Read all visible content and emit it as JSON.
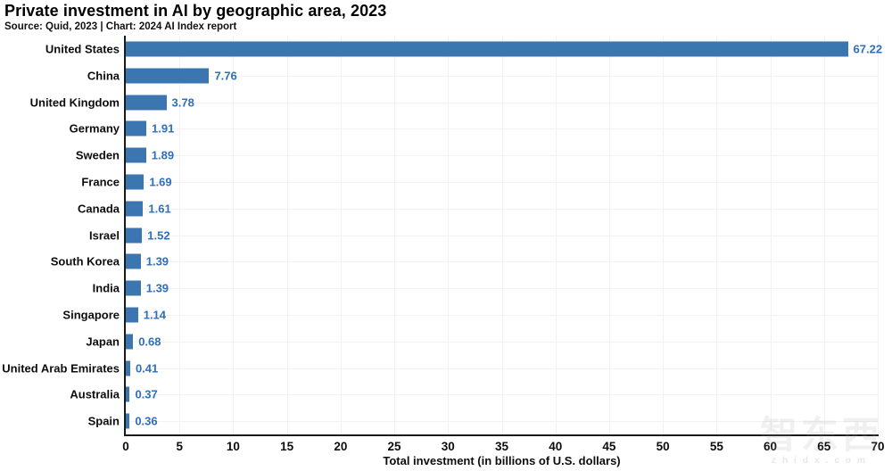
{
  "header": {
    "title": "Private investment in AI by geographic area, 2023",
    "subtitle": "Source: Quid, 2023 | Chart: 2024 AI Index report"
  },
  "chart_data": {
    "type": "bar",
    "orientation": "horizontal",
    "title": "Private investment in AI by geographic area, 2023",
    "subtitle": "Source: Quid, 2023 | Chart: 2024 AI Index report",
    "categories": [
      "United States",
      "China",
      "United Kingdom",
      "Germany",
      "Sweden",
      "France",
      "Canada",
      "Israel",
      "South Korea",
      "India",
      "Singapore",
      "Japan",
      "United Arab Emirates",
      "Australia",
      "Spain"
    ],
    "values": [
      67.22,
      7.76,
      3.78,
      1.91,
      1.89,
      1.69,
      1.61,
      1.52,
      1.39,
      1.39,
      1.14,
      0.68,
      0.41,
      0.37,
      0.36
    ],
    "xlabel": "Total investment (in billions of U.S. dollars)",
    "ylabel": "",
    "xlim": [
      0,
      70
    ],
    "xticks": [
      0,
      5,
      10,
      15,
      20,
      25,
      30,
      35,
      40,
      45,
      50,
      55,
      60,
      65,
      70
    ],
    "grid": true,
    "legend": "none",
    "colors": {
      "bar": "#3b76b0",
      "value_label": "#2e6fbe",
      "axis": "#1a1a1a",
      "gridline": "#f3f1f1",
      "text": "#0d0d0d"
    }
  },
  "watermark": {
    "text": "智东西",
    "sub": "zhidx.com"
  }
}
